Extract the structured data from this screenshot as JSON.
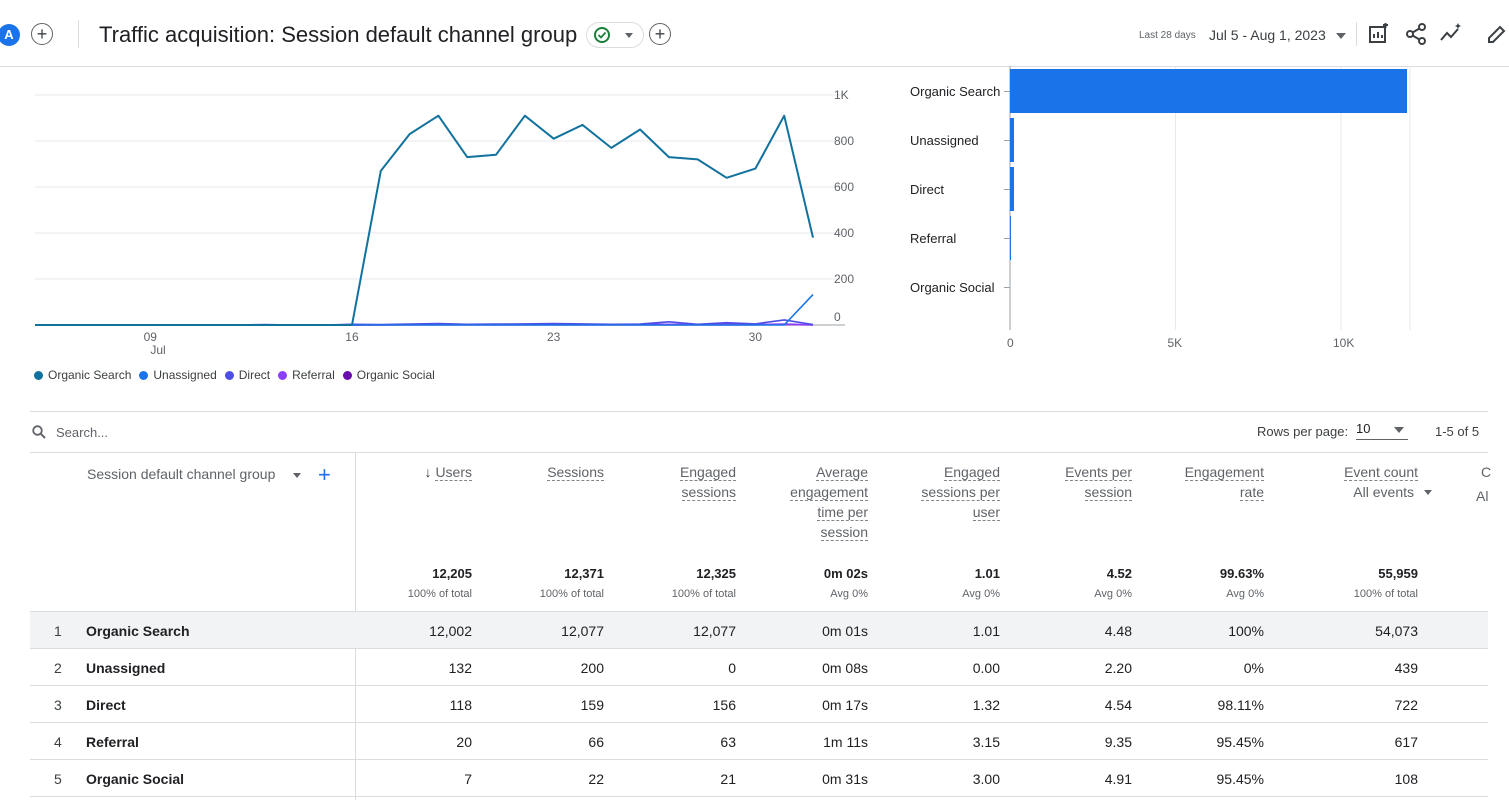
{
  "header": {
    "avatar_letter": "A",
    "title": "Traffic acquisition: Session default channel group",
    "date_label": "Last 28 days",
    "date_range": "Jul 5 - Aug 1, 2023"
  },
  "chart_data": [
    {
      "type": "line",
      "y_ticks": [
        "1K",
        "800",
        "600",
        "400",
        "200",
        "0"
      ],
      "x_ticks": [
        "09",
        "16",
        "23",
        "30"
      ],
      "x_month": "Jul",
      "ylim": [
        0,
        1000
      ],
      "x": [
        "Jul 5",
        "Jul 6",
        "Jul 7",
        "Jul 8",
        "Jul 9",
        "Jul 10",
        "Jul 11",
        "Jul 12",
        "Jul 13",
        "Jul 14",
        "Jul 15",
        "Jul 16",
        "Jul 17",
        "Jul 18",
        "Jul 19",
        "Jul 20",
        "Jul 21",
        "Jul 22",
        "Jul 23",
        "Jul 24",
        "Jul 25",
        "Jul 26",
        "Jul 27",
        "Jul 28",
        "Jul 29",
        "Jul 30",
        "Jul 31",
        "Aug 1"
      ],
      "series": [
        {
          "name": "Organic Search",
          "color": "#12729e",
          "values": [
            0,
            0,
            0,
            0,
            0,
            0,
            0,
            0,
            0,
            0,
            0,
            0,
            670,
            830,
            910,
            730,
            740,
            910,
            810,
            870,
            770,
            850,
            730,
            720,
            640,
            680,
            910,
            380
          ]
        },
        {
          "name": "Unassigned",
          "color": "#1a73e8",
          "values": [
            0,
            0,
            0,
            0,
            0,
            0,
            0,
            0,
            0,
            0,
            0,
            0,
            0,
            0,
            0,
            0,
            0,
            0,
            0,
            0,
            0,
            0,
            0,
            0,
            0,
            0,
            0,
            132
          ]
        },
        {
          "name": "Direct",
          "color": "#4d4ee6",
          "values": [
            0,
            0,
            0,
            0,
            0,
            0,
            0,
            0,
            2,
            0,
            0,
            3,
            2,
            4,
            6,
            3,
            4,
            5,
            6,
            5,
            3,
            4,
            14,
            3,
            10,
            5,
            22,
            2
          ]
        },
        {
          "name": "Referral",
          "color": "#8a3ffc",
          "values": [
            0,
            0,
            0,
            0,
            0,
            0,
            0,
            0,
            0,
            0,
            0,
            0,
            1,
            2,
            3,
            2,
            2,
            3,
            3,
            2,
            2,
            3,
            3,
            2,
            3,
            2,
            4,
            1
          ]
        },
        {
          "name": "Organic Social",
          "color": "#6a0dad",
          "values": [
            0,
            0,
            0,
            0,
            0,
            0,
            0,
            0,
            0,
            0,
            0,
            0,
            0,
            1,
            1,
            1,
            1,
            1,
            1,
            1,
            1,
            1,
            1,
            1,
            1,
            1,
            2,
            0
          ]
        }
      ]
    },
    {
      "type": "bar",
      "orientation": "horizontal",
      "categories": [
        "Organic Search",
        "Unassigned",
        "Direct",
        "Referral",
        "Organic Social"
      ],
      "values": [
        12002,
        132,
        118,
        20,
        7
      ],
      "x_ticks": [
        "0",
        "5K",
        "10K"
      ],
      "xlim": [
        0,
        12000
      ],
      "color": "#1a73e8"
    }
  ],
  "table": {
    "search_placeholder": "Search...",
    "rows_per_page_label": "Rows per page:",
    "rows_per_page": "10",
    "pagination": "1-5 of 5",
    "dimension_header": "Session default channel group",
    "columns": [
      {
        "label": "Users",
        "lines": [
          "Users"
        ],
        "sort": true,
        "total": "12,205",
        "sub": "100% of total"
      },
      {
        "label": "Sessions",
        "lines": [
          "Sessions"
        ],
        "total": "12,371",
        "sub": "100% of total"
      },
      {
        "label": "Engaged sessions",
        "lines": [
          "Engaged",
          "sessions"
        ],
        "total": "12,325",
        "sub": "100% of total"
      },
      {
        "label": "Average engagement time per session",
        "lines": [
          "Average",
          "engagement",
          "time per",
          "session"
        ],
        "total": "0m 02s",
        "sub": "Avg 0%"
      },
      {
        "label": "Engaged sessions per user",
        "lines": [
          "Engaged",
          "sessions per",
          "user"
        ],
        "total": "1.01",
        "sub": "Avg 0%"
      },
      {
        "label": "Events per session",
        "lines": [
          "Events per",
          "session"
        ],
        "total": "4.52",
        "sub": "Avg 0%"
      },
      {
        "label": "Engagement rate",
        "lines": [
          "Engagement",
          "rate"
        ],
        "total": "99.63%",
        "sub": "Avg 0%"
      },
      {
        "label": "Event count",
        "lines": [
          "Event count"
        ],
        "filter": "All events",
        "total": "55,959",
        "sub": "100% of total"
      }
    ],
    "cut_column": {
      "label": "C",
      "filter": "Al"
    },
    "rows": [
      {
        "idx": "1",
        "name": "Organic Search",
        "values": [
          "12,002",
          "12,077",
          "12,077",
          "0m 01s",
          "1.01",
          "4.48",
          "100%",
          "54,073"
        ]
      },
      {
        "idx": "2",
        "name": "Unassigned",
        "values": [
          "132",
          "200",
          "0",
          "0m 08s",
          "0.00",
          "2.20",
          "0%",
          "439"
        ]
      },
      {
        "idx": "3",
        "name": "Direct",
        "values": [
          "118",
          "159",
          "156",
          "0m 17s",
          "1.32",
          "4.54",
          "98.11%",
          "722"
        ]
      },
      {
        "idx": "4",
        "name": "Referral",
        "values": [
          "20",
          "66",
          "63",
          "1m 11s",
          "3.15",
          "9.35",
          "95.45%",
          "617"
        ]
      },
      {
        "idx": "5",
        "name": "Organic Social",
        "values": [
          "7",
          "22",
          "21",
          "0m 31s",
          "3.00",
          "4.91",
          "95.45%",
          "108"
        ]
      }
    ]
  }
}
